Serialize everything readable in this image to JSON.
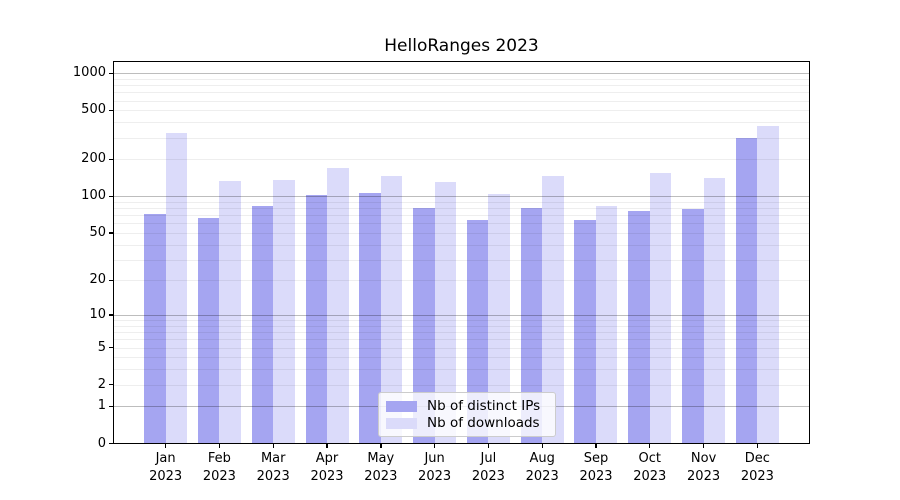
{
  "chart_data": {
    "type": "bar",
    "title": "HelloRanges 2023",
    "categories": [
      "Jan",
      "Feb",
      "Mar",
      "Apr",
      "May",
      "Jun",
      "Jul",
      "Aug",
      "Sep",
      "Oct",
      "Nov",
      "Dec"
    ],
    "year_label": "2023",
    "series": [
      {
        "name": "Nb of distinct IPs",
        "color": "#a5a5f1",
        "values": [
          72,
          66,
          83,
          102,
          107,
          80,
          64,
          80,
          64,
          75,
          79,
          300
        ]
      },
      {
        "name": "Nb of downloads",
        "color": "#dbdbfa",
        "values": [
          328,
          133,
          136,
          169,
          147,
          131,
          104,
          146,
          83,
          156,
          142,
          370
        ]
      }
    ],
    "y_scale": "log1p",
    "y_ticks": [
      0,
      1,
      2,
      5,
      10,
      20,
      50,
      100,
      200,
      500,
      1000
    ],
    "ylim": [
      0,
      1260
    ],
    "xlabel": "",
    "ylabel": "",
    "grid": "horizontal log major+minor",
    "legend_position": "lower center"
  },
  "colors": {
    "bar_dark": "#a5a5f1",
    "bar_light": "#dbdbfa",
    "grid_major": "rgba(0,0,0,0.26)",
    "grid_minor": "rgba(0,0,0,0.065)",
    "frame": "#000000",
    "background": "#ffffff"
  }
}
